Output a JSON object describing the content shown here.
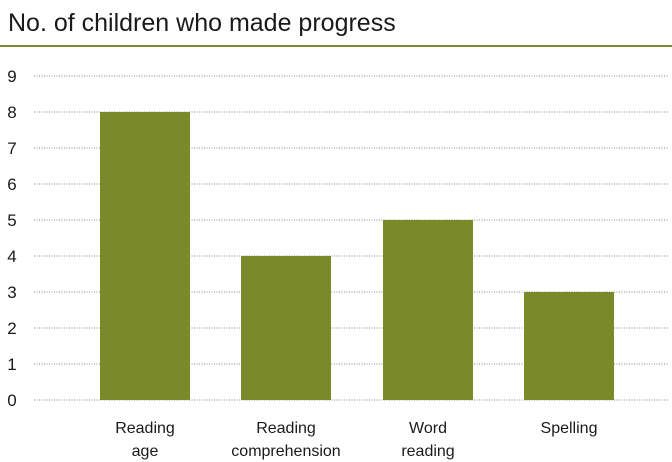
{
  "chart_data": {
    "type": "bar",
    "title": "No. of children who made progress",
    "categories": [
      [
        "Reading",
        "age"
      ],
      [
        "Reading",
        "comprehension"
      ],
      [
        "Word",
        "reading"
      ],
      [
        "Spelling"
      ]
    ],
    "values": [
      8,
      4,
      5,
      3
    ],
    "ylim": [
      0,
      9
    ],
    "yticks": [
      "0",
      "1",
      "2",
      "3",
      "4",
      "5",
      "6",
      "7",
      "8",
      "9"
    ],
    "grid": true,
    "colors": {
      "bar": "#7a8a2b",
      "grid": "#8a8f7a",
      "title_rule": "#7a8a2e"
    }
  }
}
